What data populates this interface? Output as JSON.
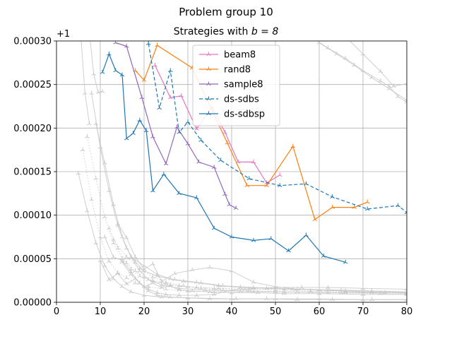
{
  "chart_data": {
    "type": "line",
    "suptitle": "Problem group 10",
    "title_prefix": "Strategies with ",
    "title_math": "b = 8",
    "offset_label": "+1",
    "xlim": [
      0,
      80
    ],
    "ylim": [
      0,
      0.0003
    ],
    "x_ticks": [
      0,
      10,
      20,
      30,
      40,
      50,
      60,
      70,
      80
    ],
    "x_tick_labels": [
      "0",
      "10",
      "20",
      "30",
      "40",
      "50",
      "60",
      "70",
      "80"
    ],
    "y_ticks": [
      0,
      5e-05,
      0.0001,
      0.00015,
      0.0002,
      0.00025,
      0.0003
    ],
    "y_tick_labels": [
      "0.00000",
      "0.00005",
      "0.00010",
      "0.00015",
      "0.00020",
      "0.00025",
      "0.00030"
    ],
    "grid": true,
    "legend_position": "top-center",
    "series": [
      {
        "name": "beam8",
        "color": "#e377c2",
        "dash": "solid",
        "x": [
          22.5,
          26,
          28.5,
          32,
          35.5,
          38.5,
          41.5,
          45,
          48,
          51
        ],
        "y": [
          0.000272,
          0.000235,
          0.000237,
          0.000199,
          0.000224,
          0.000195,
          0.000161,
          0.000161,
          0.000137,
          0.000146
        ]
      },
      {
        "name": "rand8",
        "color": "#ff7f0e",
        "dash": "solid",
        "x": [
          18,
          20,
          23,
          31,
          39,
          43.5,
          48,
          54,
          59,
          63,
          68,
          71
        ],
        "y": [
          0.000266,
          0.000255,
          0.000295,
          0.000269,
          0.000183,
          0.000134,
          0.000134,
          0.000179,
          9.5e-05,
          0.000109,
          0.000109,
          0.000115
        ]
      },
      {
        "name": "sample8",
        "color": "#9467bd",
        "dash": "solid",
        "x": [
          13.5,
          16,
          19.5,
          22,
          25,
          27.5,
          30,
          32.5,
          36,
          38.5,
          39.5,
          41
        ],
        "y": [
          0.000298,
          0.000294,
          0.000235,
          0.00019,
          0.000159,
          0.000201,
          0.000182,
          0.000161,
          0.000155,
          0.000124,
          0.000112,
          0.000108
        ]
      },
      {
        "name": "ds-sdbs",
        "color": "#1f77b4",
        "dash": "dashed",
        "x": [
          21,
          23.5,
          26,
          28,
          30,
          33,
          37.5,
          44,
          51,
          57,
          63,
          71,
          78,
          80
        ],
        "y": [
          0.000297,
          0.000223,
          0.000266,
          0.000195,
          0.000207,
          0.000186,
          0.000163,
          0.000142,
          0.000134,
          0.000136,
          0.000121,
          0.000107,
          0.000111,
          0.000103
        ]
      },
      {
        "name": "ds-sdbsp",
        "color": "#1f77b4",
        "dash": "solid",
        "x": [
          10.5,
          12,
          13.5,
          15,
          16,
          17.5,
          19,
          20.5,
          22,
          24.5,
          28,
          32,
          36,
          40,
          45,
          49,
          53,
          57,
          61,
          66
        ],
        "y": [
          0.000264,
          0.000285,
          0.000266,
          0.000261,
          0.000188,
          0.000194,
          0.000209,
          0.000197,
          0.000128,
          0.000147,
          0.000125,
          0.00012,
          8.5e-05,
          7.5e-05,
          7.1e-05,
          7.3e-05,
          5.9e-05,
          7.7e-05,
          5.3e-05,
          4.6e-05
        ]
      }
    ],
    "background_lines": [
      {
        "dash": "solid",
        "x": [
          5,
          7,
          9,
          11,
          13,
          15,
          17,
          20,
          24,
          30,
          40,
          50,
          60,
          70,
          80
        ],
        "y": [
          0.000148,
          0.000105,
          6.8e-05,
          4.2e-05,
          2.7e-05,
          1.8e-05,
          1.2e-05,
          8e-06,
          6e-06,
          5e-06,
          4e-06,
          4e-06,
          4e-06,
          3e-06,
          3e-06
        ]
      },
      {
        "dash": "dotted",
        "x": [
          6,
          8,
          10,
          12,
          14,
          16,
          18,
          21,
          25,
          30,
          36,
          45,
          55,
          65,
          80
        ],
        "y": [
          0.000175,
          0.000118,
          7.5e-05,
          4.7e-05,
          3.4e-05,
          2.8e-05,
          2.2e-05,
          1.8e-05,
          1.5e-05,
          1.3e-05,
          1.2e-05,
          1.2e-05,
          1.2e-05,
          1.1e-05,
          9e-06
        ]
      },
      {
        "dash": "solid",
        "x": [
          8,
          10,
          12,
          14,
          16,
          18,
          20,
          23,
          27,
          32,
          38,
          45,
          55,
          65,
          80
        ],
        "y": [
          0.00024,
          0.000178,
          0.000128,
          8.8e-05,
          6.2e-05,
          4.6e-05,
          3.6e-05,
          3e-05,
          2.6e-05,
          2.3e-05,
          1.9e-05,
          1.7e-05,
          1.5e-05,
          1.4e-05,
          1.2e-05
        ]
      },
      {
        "dash": "dotted",
        "x": [
          7,
          9,
          11,
          13,
          15,
          17,
          19,
          22,
          26,
          30,
          36,
          44,
          52,
          62,
          72,
          80
        ],
        "y": [
          0.00019,
          0.000142,
          9.8e-05,
          6.8e-05,
          5e-05,
          3.8e-05,
          3e-05,
          2.5e-05,
          2e-05,
          1.8e-05,
          1.6e-05,
          1.5e-05,
          1.5e-05,
          1.4e-05,
          1.3e-05,
          1.2e-05
        ]
      },
      {
        "dash": "solid",
        "x": [
          9,
          11,
          13,
          15,
          17,
          19,
          21,
          24,
          28,
          34,
          42,
          52,
          62,
          72,
          80
        ],
        "y": [
          0.000205,
          0.00016,
          0.000112,
          7.5e-05,
          5.2e-05,
          3.6e-05,
          2.6e-05,
          2e-05,
          1.6e-05,
          1.4e-05,
          1.3e-05,
          1.2e-05,
          1.1e-05,
          1.1e-05,
          1.1e-05
        ]
      },
      {
        "dash": "solid",
        "x": [
          10,
          12,
          14,
          16,
          18,
          20,
          22,
          24,
          26,
          28,
          31,
          35,
          40,
          46,
          52,
          60,
          70,
          80
        ],
        "y": [
          4.8e-05,
          2.6e-05,
          3.3e-05,
          2.1e-05,
          2.7e-05,
          1.8e-05,
          2.2e-05,
          1.7e-05,
          1.9e-05,
          1.4e-05,
          1.3e-05,
          1.2e-05,
          1.1e-05,
          1.1e-05,
          1e-05,
          1e-05,
          9e-06,
          9e-06
        ]
      },
      {
        "dash": "solid",
        "x": [
          11,
          13,
          15,
          17,
          19,
          21,
          23,
          26,
          30,
          35,
          41,
          48,
          55,
          63,
          72,
          80
        ],
        "y": [
          7.5e-05,
          5.2e-05,
          4.8e-05,
          3.5e-05,
          2.2e-05,
          1.3e-05,
          8e-06,
          6e-06,
          5e-06,
          4e-06,
          4e-06,
          4e-06,
          3e-06,
          3e-06,
          3e-06,
          3e-06
        ]
      },
      {
        "dash": "dotted",
        "x": [
          12,
          14,
          16,
          18,
          20,
          22,
          25,
          28,
          32,
          37,
          43,
          50,
          58,
          66,
          75,
          80
        ],
        "y": [
          8.5e-05,
          6.2e-05,
          4.5e-05,
          3.6e-05,
          2.9e-05,
          2.4e-05,
          2.1e-05,
          1.9e-05,
          1.7e-05,
          1.6e-05,
          1.5e-05,
          1.4e-05,
          1.3e-05,
          1.2e-05,
          1.1e-05,
          1e-05
        ]
      },
      {
        "dash": "solid",
        "x": [
          14,
          16,
          18,
          20,
          22,
          24,
          27,
          31,
          35,
          40,
          45,
          50,
          55,
          60,
          70,
          80
        ],
        "y": [
          9e-05,
          7.4e-05,
          5.2e-05,
          3.8e-05,
          4.4e-05,
          2.4e-05,
          3.3e-05,
          3.7e-05,
          4e-05,
          3.6e-05,
          2.3e-05,
          1.8e-05,
          1.5e-05,
          1.4e-05,
          1.2e-05,
          1.1e-05
        ]
      },
      {
        "dash": "solid",
        "x": [
          15,
          17,
          19,
          21,
          23,
          25,
          28,
          32,
          36,
          40,
          45,
          50,
          56,
          62,
          70,
          80
        ],
        "y": [
          4.6e-05,
          3.2e-05,
          2.2e-05,
          1.5e-05,
          1.1e-05,
          9e-06,
          8e-06,
          8e-06,
          9e-06,
          1.4e-05,
          1.6e-05,
          1.7e-05,
          1.7e-05,
          1.7e-05,
          1.6e-05,
          1.5e-05
        ]
      },
      {
        "dash": "dotted",
        "x": [
          13,
          16,
          19,
          22,
          25,
          29,
          33,
          38,
          44,
          50,
          58,
          66,
          74,
          80
        ],
        "y": [
          7.2e-05,
          5.2e-05,
          3.9e-05,
          2.9e-05,
          2.3e-05,
          1.9e-05,
          1.6e-05,
          1.4e-05,
          1.3e-05,
          1.2e-05,
          1.2e-05,
          1.1e-05,
          1e-05,
          1e-05
        ]
      },
      {
        "dash": "solid",
        "x": [
          17,
          20,
          23,
          26,
          29,
          33,
          37,
          42,
          48,
          54,
          60,
          66,
          72,
          80
        ],
        "y": [
          5.2e-05,
          4.2e-05,
          3.2e-05,
          2.7e-05,
          2.4e-05,
          2.2e-05,
          1.9e-05,
          1.7e-05,
          1.6e-05,
          1.5e-05,
          1.4e-05,
          1.3e-05,
          1.2e-05,
          1.1e-05
        ]
      },
      {
        "dash": "solid",
        "x": [
          58,
          62,
          66,
          70,
          74,
          76,
          78,
          80
        ],
        "y": [
          0.000305,
          0.000292,
          0.00028,
          0.000266,
          0.000254,
          0.000248,
          0.000236,
          0.00023
        ]
      },
      {
        "dash": "solid",
        "x": [
          60,
          64,
          68,
          72,
          76,
          80
        ],
        "y": [
          0.000298,
          0.000285,
          0.000272,
          0.000258,
          0.000245,
          0.000232
        ]
      },
      {
        "dash": "solid",
        "x": [
          66,
          70,
          74,
          77,
          80
        ],
        "y": [
          0.000305,
          0.000285,
          0.000265,
          0.000248,
          0.000251
        ]
      },
      {
        "dash": "solid",
        "x": [
          5.5,
          6.5,
          7.5
        ],
        "y": [
          0.00031,
          0.00024,
          0.000205
        ]
      },
      {
        "dash": "solid",
        "x": [
          7.5,
          8.5,
          9.5,
          10.5
        ],
        "y": [
          0.00031,
          0.000262,
          0.000241,
          0.000242
        ]
      }
    ]
  }
}
